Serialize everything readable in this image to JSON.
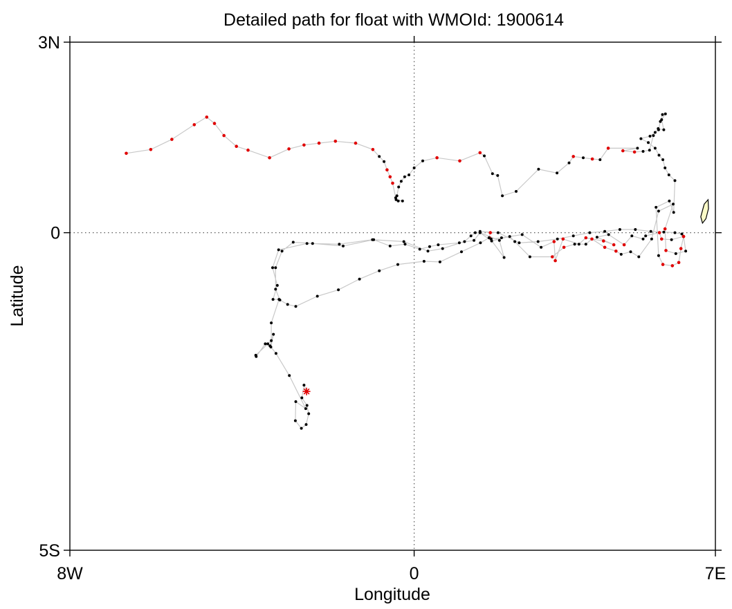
{
  "chart_data": {
    "type": "scatter",
    "title": "Detailed path for float with WMOId: 1900614",
    "xlabel": "Longitude",
    "ylabel": "Latitude",
    "xlim": [
      -8,
      7
    ],
    "ylim": [
      -5,
      3
    ],
    "x_ticks": [
      {
        "value": -8,
        "label": "8W"
      },
      {
        "value": 0,
        "label": "0"
      },
      {
        "value": 7,
        "label": "7E"
      }
    ],
    "y_ticks": [
      {
        "value": 3,
        "label": "3N"
      },
      {
        "value": 0,
        "label": "0"
      },
      {
        "value": -5,
        "label": "5S"
      }
    ],
    "reference_lines": {
      "equator_lat": 0,
      "prime_meridian_lon": 0,
      "style": "dotted"
    },
    "colors": {
      "path": "#c8c8c8",
      "black_point": "#000000",
      "red_point": "#e00000",
      "start_marker": "#e00000",
      "land_fill": "#fafac8",
      "land_stroke": "#000000"
    },
    "start_marker": {
      "lon": -2.5,
      "lat": -2.5,
      "symbol": "asterisk"
    },
    "land": {
      "polygon": [
        [
          6.74,
          0.45
        ],
        [
          6.83,
          0.52
        ],
        [
          6.84,
          0.38
        ],
        [
          6.78,
          0.22
        ],
        [
          6.7,
          0.15
        ],
        [
          6.66,
          0.25
        ]
      ]
    },
    "path": [
      [
        -2.5,
        -2.5,
        "k"
      ],
      [
        -2.56,
        -2.4,
        "k"
      ],
      [
        -2.61,
        -2.6,
        "k"
      ],
      [
        -2.49,
        -2.72,
        "k"
      ],
      [
        -2.45,
        -2.85,
        "k"
      ],
      [
        -2.51,
        -3.02,
        "k"
      ],
      [
        -2.62,
        -3.08,
        "k"
      ],
      [
        -2.76,
        -2.96,
        "k"
      ],
      [
        -2.75,
        -2.66,
        "k"
      ],
      [
        -2.52,
        -2.77,
        "k"
      ],
      [
        -2.9,
        -2.25,
        "k"
      ],
      [
        -3.21,
        -1.9,
        "k"
      ],
      [
        -3.33,
        -1.8,
        "k"
      ],
      [
        -3.27,
        -1.6,
        "k"
      ],
      [
        -3.35,
        -1.78,
        "k"
      ],
      [
        -3.46,
        -1.75,
        "k"
      ],
      [
        -3.67,
        -1.95,
        "k"
      ],
      [
        -3.68,
        -1.93,
        "k"
      ],
      [
        -3.4,
        -1.75,
        "k"
      ],
      [
        -3.32,
        -1.7,
        "k"
      ],
      [
        -3.32,
        -1.42,
        "k"
      ],
      [
        -3.14,
        -1.05,
        "k"
      ],
      [
        -3.28,
        -1.05,
        "k"
      ],
      [
        -3.18,
        -0.83,
        "k"
      ],
      [
        -3.29,
        -0.55,
        "k"
      ],
      [
        -3.15,
        -0.27,
        "k"
      ],
      [
        -2.49,
        -0.17,
        "k"
      ],
      [
        -1.74,
        -0.18,
        "k"
      ],
      [
        -0.97,
        -0.11,
        "k"
      ],
      [
        -0.24,
        -0.14,
        "k"
      ],
      [
        0.32,
        -0.29,
        "k"
      ],
      [
        0.66,
        -0.25,
        "k"
      ],
      [
        1.17,
        -0.14,
        "k"
      ],
      [
        1.32,
        -0.05,
        "k"
      ],
      [
        1.42,
        0.0,
        "k"
      ],
      [
        1.53,
        0.0,
        "k"
      ],
      [
        1.98,
        -0.12,
        "k"
      ],
      [
        2.09,
        -0.39,
        "k"
      ],
      [
        1.75,
        -0.08,
        "r"
      ],
      [
        1.79,
        -0.1,
        "k"
      ],
      [
        2.03,
        -0.08,
        "k"
      ],
      [
        2.51,
        -0.03,
        "k"
      ],
      [
        2.95,
        -0.23,
        "k"
      ],
      [
        3.25,
        -0.14,
        "r"
      ],
      [
        3.28,
        -0.44,
        "r"
      ],
      [
        3.46,
        -0.1,
        "r"
      ],
      [
        3.83,
        -0.18,
        "k"
      ],
      [
        3.99,
        -0.08,
        "r"
      ],
      [
        4.4,
        -0.13,
        "r"
      ],
      [
        4.64,
        -0.19,
        "r"
      ],
      [
        4.25,
        -0.07,
        "k"
      ],
      [
        4.52,
        -0.03,
        "k"
      ],
      [
        4.88,
        -0.19,
        "r"
      ],
      [
        5.06,
        -0.05,
        "k"
      ],
      [
        5.32,
        -0.1,
        "k"
      ],
      [
        5.38,
        -0.05,
        "k"
      ],
      [
        5.7,
        0.0,
        "r"
      ],
      [
        5.75,
        -0.1,
        "r"
      ],
      [
        5.98,
        -0.11,
        "k"
      ],
      [
        6.26,
        -0.06,
        "r"
      ],
      [
        6.31,
        -0.29,
        "k"
      ],
      [
        6.08,
        -0.33,
        "k"
      ],
      [
        5.85,
        -0.28,
        "r"
      ],
      [
        5.83,
        0.06,
        "r"
      ],
      [
        6.02,
        0.45,
        "k"
      ],
      [
        5.68,
        0.34,
        "k"
      ],
      [
        5.52,
        -0.1,
        "k"
      ],
      [
        5.22,
        -0.38,
        "k"
      ],
      [
        5.03,
        -0.3,
        "k"
      ],
      [
        4.81,
        -0.34,
        "k"
      ],
      [
        4.69,
        -0.29,
        "r"
      ],
      [
        4.43,
        -0.23,
        "r"
      ],
      [
        4.13,
        -0.1,
        "r"
      ],
      [
        3.99,
        -0.18,
        "k"
      ],
      [
        3.73,
        -0.18,
        "k"
      ],
      [
        3.48,
        -0.23,
        "r"
      ],
      [
        3.21,
        -0.38,
        "r"
      ],
      [
        2.69,
        -0.38,
        "k"
      ],
      [
        2.34,
        -0.14,
        "k"
      ],
      [
        2.22,
        -0.06,
        "k"
      ],
      [
        1.8,
        -0.13,
        "k"
      ],
      [
        1.53,
        0.0,
        "k"
      ],
      [
        1.39,
        -0.12,
        "k"
      ],
      [
        1.05,
        -0.16,
        "k"
      ],
      [
        0.56,
        -0.19,
        "k"
      ],
      [
        0.36,
        -0.22,
        "k"
      ],
      [
        0.13,
        -0.26,
        "k"
      ],
      [
        -0.21,
        -0.18,
        "k"
      ],
      [
        -0.56,
        -0.21,
        "k"
      ],
      [
        -0.94,
        -0.11,
        "k"
      ],
      [
        -1.65,
        -0.21,
        "k"
      ],
      [
        -2.36,
        -0.17,
        "k"
      ],
      [
        -2.81,
        -0.15,
        "k"
      ],
      [
        -3.07,
        -0.29,
        "k"
      ],
      [
        -3.22,
        -0.55,
        "k"
      ],
      [
        -3.22,
        -0.89,
        "k"
      ],
      [
        -3.12,
        -1.06,
        "k"
      ],
      [
        -2.94,
        -1.13,
        "k"
      ],
      [
        -2.75,
        -1.16,
        "k"
      ],
      [
        -2.25,
        -1.0,
        "k"
      ],
      [
        -1.76,
        -0.9,
        "k"
      ],
      [
        -1.27,
        -0.73,
        "k"
      ],
      [
        -0.81,
        -0.6,
        "k"
      ],
      [
        -0.38,
        -0.5,
        "k"
      ],
      [
        0.23,
        -0.45,
        "k"
      ],
      [
        0.6,
        -0.46,
        "k"
      ],
      [
        1.1,
        -0.3,
        "k"
      ],
      [
        1.54,
        -0.16,
        "k"
      ],
      [
        1.74,
        -0.08,
        "k"
      ],
      [
        1.77,
        0.0,
        "r"
      ],
      [
        1.53,
        0.02,
        "k"
      ],
      [
        1.95,
        0.0,
        "k"
      ],
      [
        2.44,
        -0.16,
        "k"
      ],
      [
        2.88,
        -0.14,
        "k"
      ],
      [
        3.33,
        -0.1,
        "k"
      ],
      [
        3.7,
        -0.05,
        "k"
      ],
      [
        4.08,
        0.0,
        "k"
      ],
      [
        4.43,
        0.02,
        "k"
      ],
      [
        4.78,
        0.05,
        "k"
      ],
      [
        5.14,
        0.05,
        "k"
      ],
      [
        5.5,
        0.02,
        "k"
      ],
      [
        5.8,
        0.01,
        "k"
      ],
      [
        6.06,
        0.0,
        "k"
      ],
      [
        6.22,
        -0.02,
        "k"
      ],
      [
        6.26,
        -0.06,
        "r"
      ],
      [
        6.2,
        -0.25,
        "r"
      ],
      [
        6.15,
        -0.47,
        "r"
      ],
      [
        6.0,
        -0.52,
        "r"
      ],
      [
        5.78,
        -0.5,
        "r"
      ],
      [
        5.68,
        -0.36,
        "k"
      ],
      [
        5.62,
        0.4,
        "k"
      ],
      [
        5.93,
        0.5,
        "k"
      ],
      [
        6.03,
        0.32,
        "k"
      ],
      [
        6.06,
        0.82,
        "k"
      ],
      [
        5.92,
        0.91,
        "k"
      ],
      [
        5.83,
        1.02,
        "k"
      ],
      [
        5.78,
        1.15,
        "k"
      ],
      [
        5.69,
        1.22,
        "k"
      ],
      [
        5.6,
        1.33,
        "k"
      ],
      [
        5.44,
        1.42,
        "k"
      ],
      [
        5.27,
        1.48,
        "k"
      ],
      [
        5.48,
        1.52,
        "k"
      ],
      [
        5.6,
        1.58,
        "k"
      ],
      [
        5.68,
        1.62,
        "k"
      ],
      [
        5.72,
        1.75,
        "k"
      ],
      [
        5.77,
        1.86,
        "k"
      ],
      [
        5.84,
        1.87,
        "k"
      ],
      [
        5.75,
        1.78,
        "k"
      ],
      [
        5.8,
        1.62,
        "k"
      ],
      [
        5.67,
        1.64,
        "k"
      ],
      [
        5.56,
        1.53,
        "k"
      ],
      [
        5.47,
        1.3,
        "k"
      ],
      [
        5.32,
        1.28,
        "k"
      ],
      [
        5.12,
        1.27,
        "r"
      ],
      [
        4.85,
        1.29,
        "r"
      ],
      [
        5.19,
        1.33,
        "k"
      ],
      [
        4.51,
        1.33,
        "r"
      ],
      [
        4.32,
        1.15,
        "k"
      ],
      [
        4.14,
        1.16,
        "r"
      ],
      [
        3.93,
        1.18,
        "k"
      ],
      [
        3.7,
        1.2,
        "r"
      ],
      [
        3.6,
        1.1,
        "k"
      ],
      [
        3.32,
        0.94,
        "k"
      ],
      [
        2.89,
        1.0,
        "k"
      ],
      [
        2.37,
        0.65,
        "k"
      ],
      [
        2.05,
        0.58,
        "k"
      ],
      [
        1.94,
        0.9,
        "k"
      ],
      [
        1.82,
        0.93,
        "k"
      ],
      [
        1.63,
        1.21,
        "k"
      ],
      [
        1.53,
        1.26,
        "r"
      ],
      [
        1.06,
        1.13,
        "r"
      ],
      [
        0.53,
        1.18,
        "r"
      ],
      [
        0.2,
        1.13,
        "k"
      ],
      [
        0.0,
        1.02,
        "k"
      ],
      [
        -0.12,
        0.91,
        "k"
      ],
      [
        -0.22,
        0.88,
        "k"
      ],
      [
        -0.3,
        0.81,
        "k"
      ],
      [
        -0.36,
        0.72,
        "k"
      ],
      [
        -0.4,
        0.58,
        "k"
      ],
      [
        -0.43,
        0.55,
        "k"
      ],
      [
        -0.37,
        0.5,
        "k"
      ],
      [
        -0.27,
        0.5,
        "k"
      ],
      [
        -0.42,
        0.52,
        "k"
      ],
      [
        -0.5,
        0.78,
        "r"
      ],
      [
        -0.56,
        0.88,
        "r"
      ],
      [
        -0.63,
        0.99,
        "r"
      ],
      [
        -0.7,
        1.12,
        "k"
      ],
      [
        -0.81,
        1.2,
        "k"
      ],
      [
        -0.96,
        1.31,
        "r"
      ],
      [
        -1.36,
        1.41,
        "r"
      ],
      [
        -1.83,
        1.44,
        "r"
      ],
      [
        -2.21,
        1.41,
        "r"
      ],
      [
        -2.56,
        1.38,
        "r"
      ],
      [
        -2.91,
        1.32,
        "r"
      ],
      [
        -3.36,
        1.18,
        "r"
      ],
      [
        -3.86,
        1.3,
        "r"
      ],
      [
        -4.13,
        1.36,
        "r"
      ],
      [
        -4.42,
        1.53,
        "r"
      ],
      [
        -4.64,
        1.72,
        "r"
      ],
      [
        -4.82,
        1.82,
        "r"
      ],
      [
        -5.11,
        1.7,
        "r"
      ],
      [
        -5.63,
        1.47,
        "r"
      ],
      [
        -6.12,
        1.31,
        "r"
      ],
      [
        -6.69,
        1.25,
        "r"
      ]
    ]
  }
}
